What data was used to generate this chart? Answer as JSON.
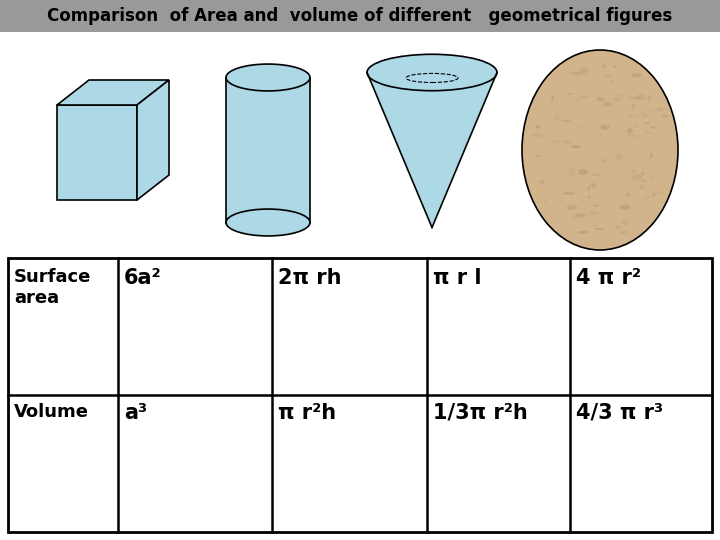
{
  "title": "Comparison  of Area and  volume of different   geometrical figures",
  "title_bg": "#999999",
  "title_fontsize": 12,
  "title_color": "black",
  "surface_area": [
    "6a²",
    "2π rh",
    "π r l",
    "4 π r²"
  ],
  "volume": [
    "a³",
    "π r²h",
    "1/3π r²h",
    "4/3 π r³"
  ],
  "cell_fontsize": 15,
  "row_label_fontsize": 13,
  "cube_color": "#add8e6",
  "cylinder_color": "#add8e6",
  "cone_color": "#add8e6",
  "sphere_color": "#d2b48c",
  "bg_color": "white",
  "table_line_color": "black",
  "fig_width": 7.2,
  "fig_height": 5.4
}
